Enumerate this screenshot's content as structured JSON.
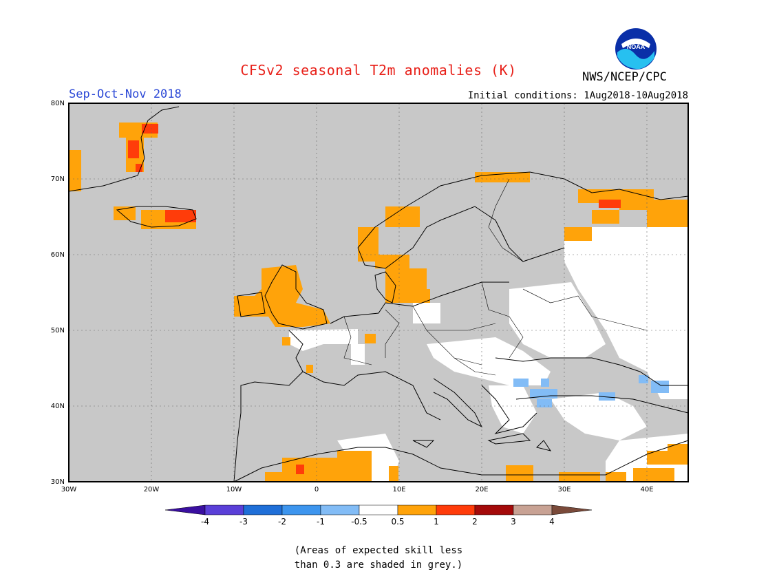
{
  "header": {
    "title": "CFSv2 seasonal T2m anomalies (K)",
    "agency": "NWS/NCEP/CPC",
    "logo_text": "NOAA",
    "season": "Sep-Oct-Nov 2018",
    "initial_conditions": "Initial conditions: 1Aug2018-10Aug2018"
  },
  "map": {
    "region": "Europe",
    "lon_range": [
      -30,
      45
    ],
    "lat_range": [
      30,
      80
    ],
    "lon_ticks": [
      "30W",
      "20W",
      "10W",
      "0",
      "10E",
      "20E",
      "30E",
      "40E"
    ],
    "lat_ticks": [
      "80N",
      "70N",
      "60N",
      "50N",
      "40N",
      "30N"
    ],
    "grid": true,
    "land_color_default": "#c8c8c8"
  },
  "colorbar": {
    "labels": [
      "-4",
      "-3",
      "-2",
      "-1",
      "-0.5",
      "0.5",
      "1",
      "2",
      "3",
      "4"
    ],
    "colors": [
      "#3a0fa0",
      "#5a3fd8",
      "#1f6fd8",
      "#3d95ee",
      "#82bcf6",
      "#ffffff",
      "#ffa30a",
      "#ff3c0a",
      "#a40a0a",
      "#c8a294",
      "#7a4a3a"
    ]
  },
  "note": {
    "line1": "(Areas of expected skill less",
    "line2": "than 0.3 are shaded in grey.)"
  }
}
